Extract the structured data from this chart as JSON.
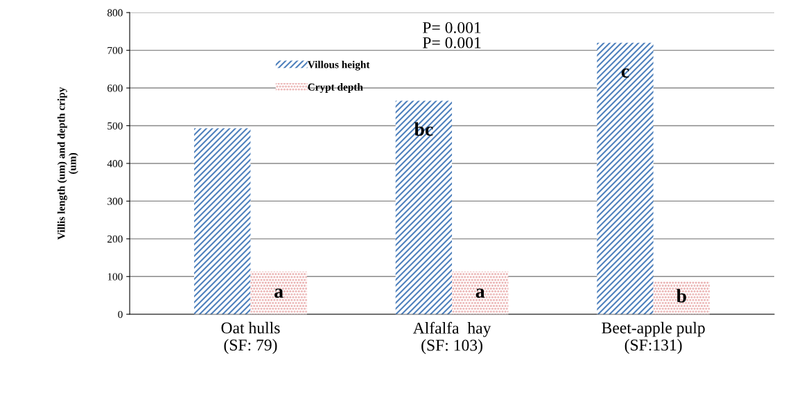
{
  "chart_data": {
    "type": "bar",
    "categories": [
      "Oat hulls\n(SF: 79)",
      "Alfalfa  hay\n(SF: 103)",
      "Beet-apple pulp\n(SF:131)"
    ],
    "series": [
      {
        "name": "Villous height",
        "color": "#4f81bd",
        "values": [
          493,
          566,
          720
        ]
      },
      {
        "name": "Crypt depth",
        "color": "#e6a0a0",
        "values": [
          113,
          113,
          88
        ]
      }
    ],
    "ylabel": "Villis length (um) and depth cripy\n(um)",
    "ylim": [
      0,
      800
    ],
    "yticks": [
      0,
      100,
      200,
      300,
      400,
      500,
      600,
      700,
      800
    ],
    "grid": "y",
    "legend": "top left",
    "annotations": [
      "P= 0.001",
      "P= 0.001",
      {
        "text": "a",
        "x": "Oat hulls\n(SF: 79)",
        "y": 113
      },
      {
        "text": "bc",
        "x": "Alfalfa  hay\n(SF: 103)",
        "y": 566
      },
      {
        "text": "a",
        "x": "Alfalfa  hay\n(SF: 103)",
        "y": 113
      },
      {
        "text": "c",
        "x": "Beet-apple pulp\n(SF:131)",
        "y": 720
      },
      {
        "text": "b",
        "x": "Beet-apple pulp\n(SF:131)",
        "y": 88
      }
    ]
  }
}
